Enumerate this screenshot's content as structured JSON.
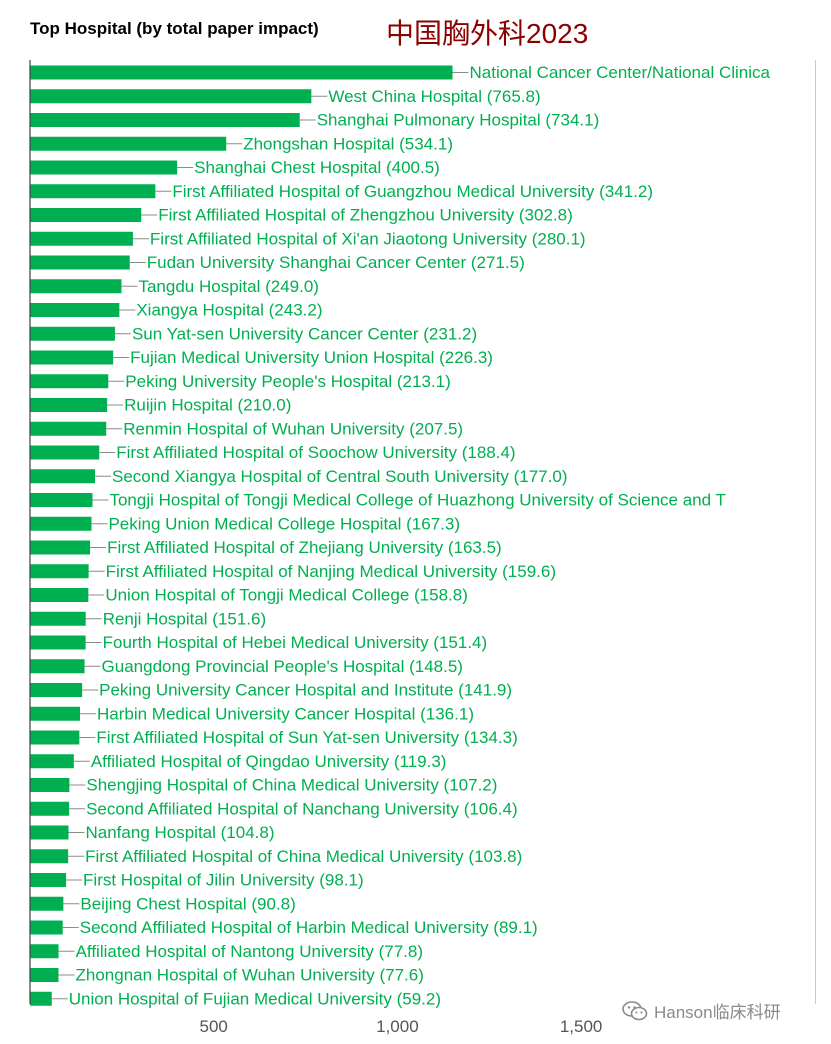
{
  "header": {
    "title": "Top Hospital (by total paper impact)",
    "subtitle": "中国胸外科2023"
  },
  "watermark": {
    "text": "Hanson临床科研",
    "icon": "wechat-icon"
  },
  "colors": {
    "bar": "#00b050",
    "label": "#00b050",
    "axis": "#404040",
    "tick_label": "#555555"
  },
  "chart_data": {
    "type": "bar",
    "orientation": "horizontal",
    "title": "Top Hospital (by total paper impact)",
    "xticks": [
      500,
      1000,
      1500
    ],
    "xtick_labels": [
      "500",
      "1,000",
      "1,500"
    ],
    "grid": false,
    "categories": [
      "National Cancer Center/National Clinica",
      "West China Hospital",
      "Shanghai Pulmonary Hospital",
      "Zhongshan Hospital",
      "Shanghai Chest Hospital",
      "First Affiliated Hospital of Guangzhou Medical University",
      "First Affiliated Hospital of Zhengzhou University",
      "First Affiliated Hospital of Xi'an Jiaotong University",
      "Fudan University Shanghai Cancer Center",
      "Tangdu Hospital",
      "Xiangya Hospital",
      "Sun Yat-sen University Cancer Center",
      "Fujian Medical University Union Hospital",
      "Peking University People's Hospital",
      "Ruijin Hospital",
      "Renmin Hospital of Wuhan University",
      "First Affiliated Hospital of Soochow University",
      "Second Xiangya Hospital of Central South University",
      "Tongji Hospital of Tongji Medical College of Huazhong University of Science and T",
      "Peking Union Medical College Hospital",
      "First Affiliated Hospital of Zhejiang University",
      "First Affiliated Hospital of Nanjing Medical University",
      "Union Hospital of Tongji Medical College",
      "Renji Hospital",
      "Fourth Hospital of Hebei Medical University",
      "Guangdong Provincial People's Hospital",
      "Peking University Cancer Hospital and Institute",
      "Harbin Medical University Cancer Hospital",
      "First Affiliated Hospital of Sun Yat-sen University",
      "Affiliated Hospital of Qingdao University",
      "Shengjing Hospital of China Medical University",
      "Second Affiliated Hospital of Nanchang University",
      "Nanfang Hospital",
      "First Affiliated Hospital of China Medical University",
      "First Hospital of Jilin University",
      "Beijing Chest Hospital",
      "Second Affiliated Hospital of Harbin Medical University",
      "Affiliated Hospital of Nantong University",
      "Zhongnan Hospital of Wuhan University",
      "Union Hospital of Fujian Medical University"
    ],
    "values": [
      1150,
      765.8,
      734.1,
      534.1,
      400.5,
      341.2,
      302.8,
      280.1,
      271.5,
      249.0,
      243.2,
      231.2,
      226.3,
      213.1,
      210.0,
      207.5,
      188.4,
      177.0,
      170,
      167.3,
      163.5,
      159.6,
      158.8,
      151.6,
      151.4,
      148.5,
      141.9,
      136.1,
      134.3,
      119.3,
      107.2,
      106.4,
      104.8,
      103.8,
      98.1,
      90.8,
      89.1,
      77.8,
      77.6,
      59.2
    ],
    "value_labels": [
      "",
      "(765.8)",
      "(734.1)",
      "(534.1)",
      "(400.5)",
      "(341.2)",
      "(302.8)",
      "(280.1)",
      "(271.5)",
      "(249.0)",
      "(243.2)",
      "(231.2)",
      "(226.3)",
      "(213.1)",
      "(210.0)",
      "(207.5)",
      "(188.4)",
      "(177.0)",
      "",
      "(167.3)",
      "(163.5)",
      "(159.6)",
      "(158.8)",
      "(151.6)",
      "(151.4)",
      "(148.5)",
      "(141.9)",
      "(136.1)",
      "(134.3)",
      "(119.3)",
      "(107.2)",
      "(106.4)",
      "(104.8)",
      "(103.8)",
      "(98.1)",
      "(90.8)",
      "(89.1)",
      "(77.8)",
      "(77.6)",
      "(59.2)"
    ]
  }
}
